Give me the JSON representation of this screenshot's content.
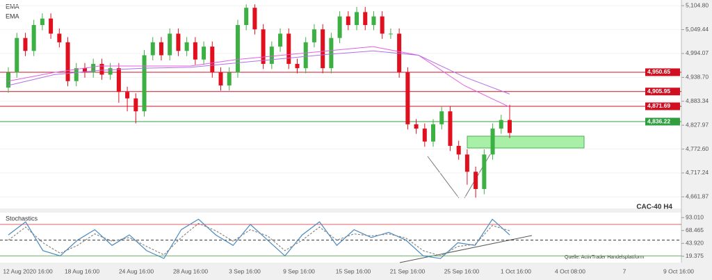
{
  "chart_data": {
    "type": "candlestick",
    "title": "CAC-40 H4",
    "source": "Quelle: ActivTrader Handelsplattform",
    "indicator_labels": [
      "EMA",
      "EMA"
    ],
    "open": [
      4915,
      4950,
      5030,
      5000,
      5060,
      5075,
      5040,
      5020,
      4930,
      4960,
      4950,
      4970,
      4945,
      4960,
      4905,
      4890,
      4860,
      4990,
      5020,
      4990,
      5040,
      5000,
      5020,
      4980,
      5010,
      4950,
      4920,
      4950,
      5060,
      5100,
      5050,
      4970,
      5010,
      5040,
      4970,
      4960,
      5020,
      5050,
      4960,
      5030,
      5080,
      5060,
      5090,
      5060,
      5080,
      5040,
      5040,
      4950,
      4830,
      4820,
      4790,
      4830,
      4860,
      4780,
      4760,
      4720,
      4680,
      4760,
      4820,
      4840
    ],
    "high": [
      4962,
      5042,
      5042,
      5072,
      5087,
      5087,
      5052,
      5032,
      4972,
      4972,
      4982,
      4982,
      4972,
      4972,
      4917,
      4902,
      5002,
      5032,
      5032,
      5052,
      5052,
      5032,
      5032,
      5022,
      5022,
      4962,
      4962,
      5072,
      5108,
      5108,
      5062,
      5022,
      5052,
      5052,
      4982,
      5032,
      5062,
      5062,
      5042,
      5092,
      5092,
      5102,
      5102,
      5092,
      5092,
      5052,
      5052,
      4962,
      4842,
      4832,
      4842,
      4872,
      4872,
      4792,
      4772,
      4732,
      4772,
      4832,
      4852,
      4875
    ],
    "low": [
      4903,
      4938,
      4988,
      4988,
      5048,
      5028,
      5008,
      4918,
      4918,
      4938,
      4938,
      4933,
      4933,
      4880,
      4860,
      4832,
      4848,
      4978,
      4978,
      4978,
      4988,
      4988,
      4968,
      4968,
      4938,
      4908,
      4908,
      4938,
      5048,
      5038,
      4958,
      4958,
      4998,
      4958,
      4948,
      4948,
      5008,
      4948,
      4948,
      5018,
      5048,
      5048,
      5048,
      5048,
      5028,
      5028,
      4938,
      4818,
      4808,
      4778,
      4778,
      4818,
      4768,
      4748,
      4690,
      4660,
      4668,
      4748,
      4808,
      4798
    ],
    "close": [
      4950,
      5030,
      5000,
      5060,
      5075,
      5040,
      5020,
      4930,
      4960,
      4950,
      4970,
      4945,
      4960,
      4905,
      4890,
      4860,
      4990,
      5020,
      4990,
      5040,
      5000,
      5020,
      4980,
      5010,
      4950,
      4920,
      4950,
      5060,
      5100,
      5050,
      4970,
      5010,
      5040,
      4970,
      4960,
      5020,
      5050,
      4960,
      5030,
      5080,
      5060,
      5090,
      5060,
      5080,
      5040,
      5040,
      4950,
      4830,
      4820,
      4790,
      4830,
      4860,
      4780,
      4760,
      4720,
      4680,
      4760,
      4820,
      4840,
      4810
    ],
    "up_color": "#3cb043",
    "down_color": "#e0101e",
    "ema": [
      {
        "color": "#e060e0",
        "values": [
          4930,
          4950,
          4965,
          4965,
          4965,
          4980,
          4990,
          5000,
          5010,
          4990,
          4920,
          4870
        ]
      },
      {
        "color": "#b070e8",
        "values": [
          4920,
          4945,
          4955,
          4960,
          4962,
          4972,
          4982,
          4992,
          5000,
          4990,
          4940,
          4900
        ]
      }
    ],
    "levels": [
      {
        "value": 4950.65,
        "label": "4,950.65",
        "color": "#d01020"
      },
      {
        "value": 4905.95,
        "label": "4,905.95",
        "color": "#d01020"
      },
      {
        "value": 4871.69,
        "label": "4,871.69",
        "color": "#d01020"
      },
      {
        "value": 4836.22,
        "label": "4,836.22",
        "color": "#2e9e3e"
      }
    ],
    "ylim": [
      4635,
      5118
    ],
    "yticks": [
      {
        "value": 5104.8,
        "label": "5,104.80"
      },
      {
        "value": 5049.44,
        "label": "5,049.44"
      },
      {
        "value": 4994.07,
        "label": "4,994.07"
      },
      {
        "value": 4938.7,
        "label": "4,938.70"
      },
      {
        "value": 4883.34,
        "label": "4,883.34"
      },
      {
        "value": 4827.97,
        "label": "4,827.97"
      },
      {
        "value": 4772.6,
        "label": "4,772.60"
      },
      {
        "value": 4717.24,
        "label": "4,717.24"
      },
      {
        "value": 4661.87,
        "label": "4,661.87"
      }
    ],
    "x_labels": [
      "12 Aug 2020 16:00",
      "18 Aug 16:00",
      "24 Aug 16:00",
      "28 Aug 16:00",
      "3 Sep 16:00",
      "9 Sep 16:00",
      "15 Sep 16:00",
      "21 Sep 16:00",
      "25 Sep 16:00",
      "1 Oct 16:00",
      "4 Oct 08:00",
      "7",
      "9 Oct 16:00"
    ],
    "stochastics": {
      "title": "Stochastics",
      "ylim": [
        7.1,
        102.6
      ],
      "yticks": [
        {
          "value": 93.01,
          "label": "93.010"
        },
        {
          "value": 68.465,
          "label": "68.465"
        },
        {
          "value": 43.92,
          "label": "43.920"
        },
        {
          "value": 19.375,
          "label": "19.375"
        }
      ],
      "levels": [
        80,
        50,
        20
      ],
      "series": [
        {
          "color": "#4a8ac0",
          "values": [
            60,
            85,
            30,
            20,
            50,
            70,
            40,
            60,
            30,
            15,
            70,
            90,
            60,
            40,
            80,
            50,
            20,
            60,
            85,
            40,
            70,
            55,
            65,
            50,
            20,
            15,
            45,
            40,
            90,
            60
          ]
        },
        {
          "color": "#888888",
          "values": [
            50,
            75,
            45,
            25,
            40,
            62,
            48,
            55,
            38,
            22,
            55,
            82,
            68,
            48,
            70,
            58,
            30,
            50,
            75,
            50,
            62,
            58,
            62,
            54,
            30,
            20,
            38,
            42,
            78,
            68
          ]
        }
      ]
    }
  }
}
